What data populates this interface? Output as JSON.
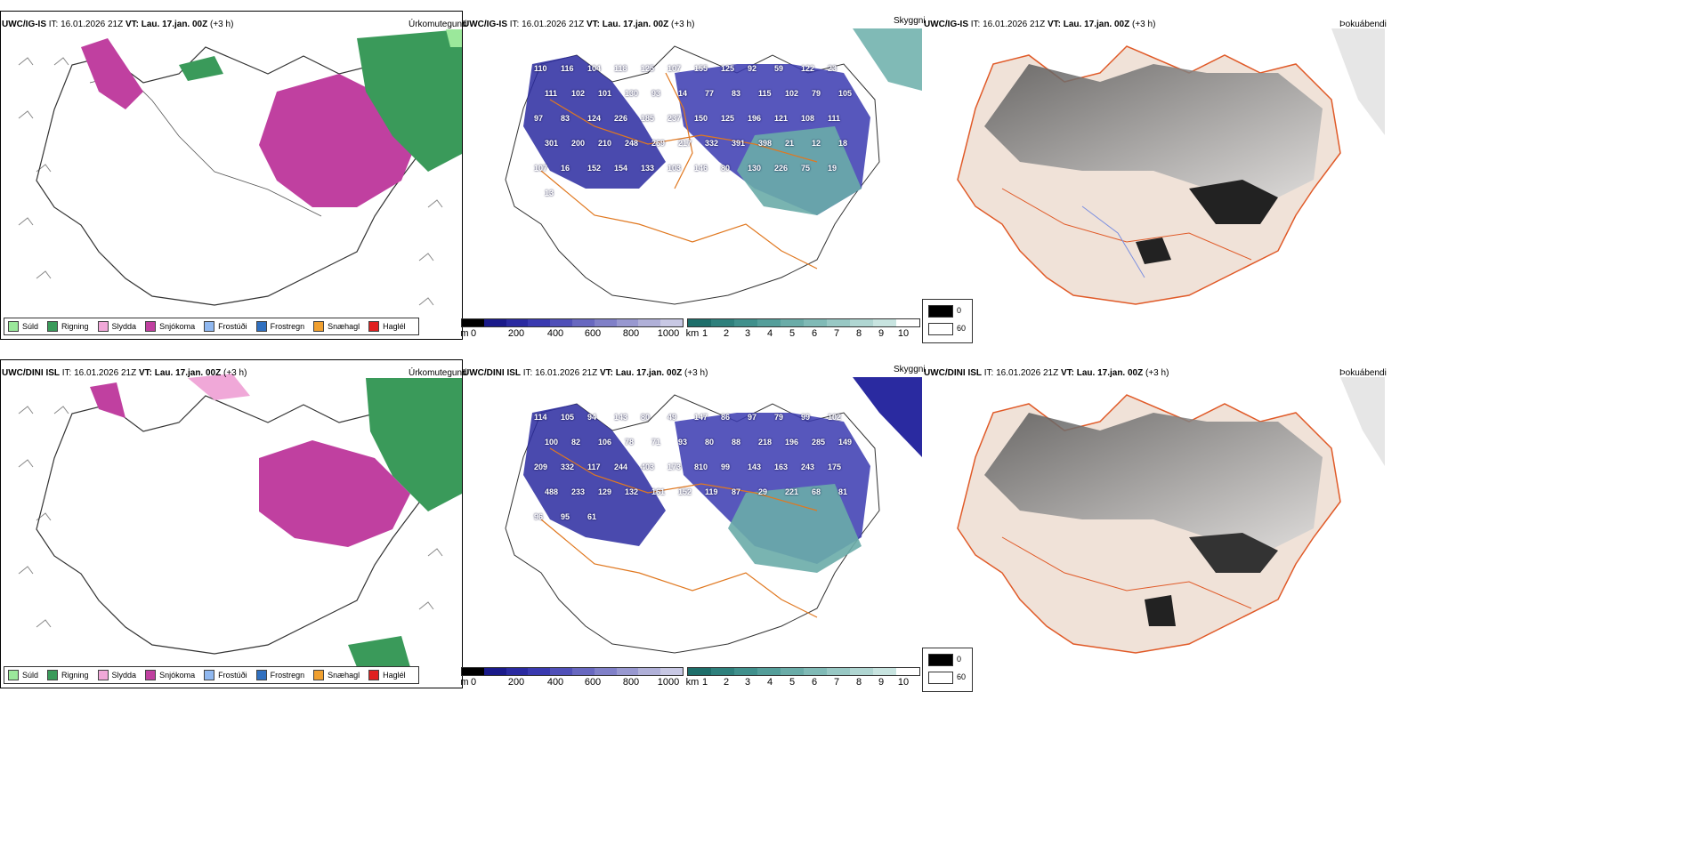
{
  "rows": [
    {
      "model": "UWC/IG-IS",
      "it_label": "IT:",
      "it_value": "16.01.2026 21Z",
      "vt_label": "VT:",
      "vt_value": "Lau. 17.jan. 00Z",
      "lead": "(+3 h)"
    },
    {
      "model": "UWC/DINI ISL",
      "it_label": "IT:",
      "it_value": "16.01.2026 21Z",
      "vt_label": "VT:",
      "vt_value": "Lau. 17.jan. 00Z",
      "lead": "(+3 h)"
    }
  ],
  "panel_titles": {
    "precip": "Úrkomutegund",
    "visibility": "Skyggni",
    "fog": "Þokuábendi"
  },
  "precip_legend": [
    {
      "label": "Súld",
      "color": "#9be89b"
    },
    {
      "label": "Rigning",
      "color": "#3a9a5a"
    },
    {
      "label": "Slydda",
      "color": "#f0a8d8"
    },
    {
      "label": "Snjókoma",
      "color": "#c040a0"
    },
    {
      "label": "Frostúði",
      "color": "#90b8f0"
    },
    {
      "label": "Frostregn",
      "color": "#3070c0"
    },
    {
      "label": "Snæhagl",
      "color": "#f0a030"
    },
    {
      "label": "Haglél",
      "color": "#e02020"
    }
  ],
  "cloud_base_bar": {
    "unit": "m",
    "ticks": [
      "0",
      "200",
      "400",
      "600",
      "800",
      "1000"
    ],
    "colors": [
      "#000000",
      "#1a1a8a",
      "#2a2aa0",
      "#3a3ab0",
      "#5050b8",
      "#6868c0",
      "#8080c8",
      "#9898d0",
      "#b0b0d8",
      "#c8c8e4"
    ]
  },
  "visibility_bar": {
    "unit": "km",
    "ticks": [
      "1",
      "2",
      "3",
      "4",
      "5",
      "6",
      "7",
      "8",
      "9",
      "10"
    ],
    "colors": [
      "#1e6e6a",
      "#2e807c",
      "#40908c",
      "#549e9a",
      "#6aaca8",
      "#80bab6",
      "#98c8c4",
      "#b0d6d2",
      "#c8e4e0",
      "#ffffff"
    ]
  },
  "fog_legend": {
    "high": "0",
    "low": "60"
  },
  "map_labels_top": [
    "110",
    "116",
    "104",
    "118",
    "125",
    "107",
    "155",
    "125",
    "92",
    "59",
    "122",
    "23",
    "111",
    "102",
    "101",
    "130",
    "93",
    "14",
    "77",
    "83",
    "115",
    "102",
    "79",
    "105",
    "97",
    "83",
    "124",
    "226",
    "185",
    "237",
    "150",
    "125",
    "196",
    "121",
    "108",
    "111",
    "301",
    "200",
    "210",
    "248",
    "269",
    "217",
    "332",
    "391",
    "398",
    "21",
    "12",
    "18",
    "107",
    "16",
    "152",
    "154",
    "133",
    "103",
    "146",
    "80",
    "130",
    "226",
    "75",
    "19",
    "13"
  ],
  "map_labels_bottom": [
    "114",
    "105",
    "94",
    "143",
    "80",
    "49",
    "147",
    "86",
    "97",
    "79",
    "99",
    "102",
    "100",
    "82",
    "106",
    "78",
    "71",
    "93",
    "80",
    "88",
    "218",
    "196",
    "285",
    "149",
    "209",
    "332",
    "117",
    "244",
    "403",
    "173",
    "810",
    "99",
    "143",
    "163",
    "243",
    "175",
    "488",
    "233",
    "129",
    "132",
    "161",
    "152",
    "119",
    "87",
    "29",
    "221",
    "68",
    "81",
    "96",
    "95",
    "61"
  ]
}
